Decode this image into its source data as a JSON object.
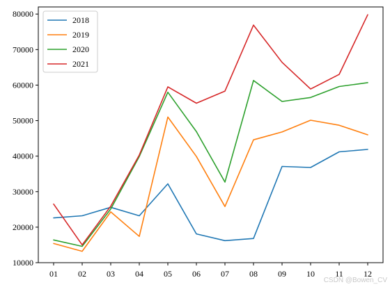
{
  "chart_data": {
    "type": "line",
    "title": "",
    "xlabel": "",
    "ylabel": "",
    "categories": [
      "01",
      "02",
      "03",
      "04",
      "05",
      "06",
      "07",
      "08",
      "09",
      "10",
      "11",
      "12"
    ],
    "ylim": [
      10000,
      82000
    ],
    "yticks": [
      10000,
      20000,
      30000,
      40000,
      50000,
      60000,
      70000,
      80000
    ],
    "grid": false,
    "legend": "top-left",
    "series": [
      {
        "name": "2018",
        "color": "#1f77b4",
        "values": [
          22600,
          23200,
          25600,
          23200,
          32200,
          18100,
          16200,
          16800,
          37100,
          36800,
          41200,
          41900
        ]
      },
      {
        "name": "2019",
        "color": "#ff7f0e",
        "values": [
          15400,
          13200,
          24300,
          17400,
          51000,
          39900,
          25800,
          44600,
          46800,
          50100,
          48700,
          46000
        ]
      },
      {
        "name": "2020",
        "color": "#2ca02c",
        "values": [
          16400,
          14600,
          25100,
          39900,
          58000,
          46900,
          32700,
          61300,
          55400,
          56500,
          59600,
          60700
        ]
      },
      {
        "name": "2021",
        "color": "#d62728",
        "values": [
          26500,
          15000,
          25900,
          40300,
          59500,
          54900,
          58300,
          76900,
          66400,
          58900,
          63000,
          79800
        ]
      }
    ]
  },
  "watermark": "CSDN @Bowen_CV"
}
